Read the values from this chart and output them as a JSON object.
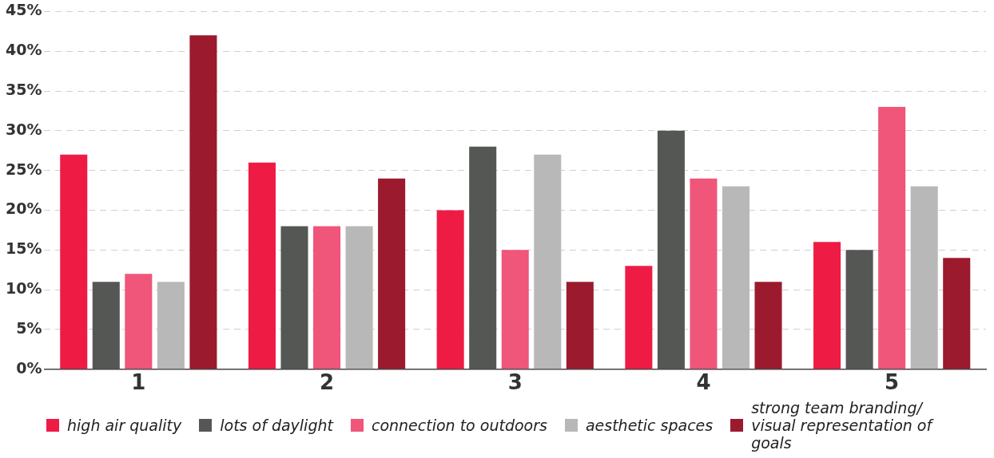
{
  "chart_data": {
    "type": "bar",
    "categories": [
      "1",
      "2",
      "3",
      "4",
      "5"
    ],
    "series": [
      {
        "name": "high air quality",
        "color": "#ee1c45",
        "values": [
          27,
          26,
          20,
          13,
          16
        ]
      },
      {
        "name": "lots of daylight",
        "color": "#555755",
        "values": [
          11,
          18,
          28,
          30,
          15
        ]
      },
      {
        "name": "connection to outdoors",
        "color": "#f0557a",
        "values": [
          12,
          18,
          15,
          24,
          33
        ]
      },
      {
        "name": "aesthetic spaces",
        "color": "#b8b8b8",
        "values": [
          11,
          18,
          27,
          23,
          23
        ]
      },
      {
        "name": "strong team branding/ visual representation of goals",
        "color": "#9b1a2e",
        "values": [
          42,
          24,
          11,
          11,
          14
        ]
      }
    ],
    "ylim": [
      0,
      45
    ],
    "yticks": [
      {
        "value": 0,
        "label": "0%"
      },
      {
        "value": 5,
        "label": "5%"
      },
      {
        "value": 10,
        "label": "10%"
      },
      {
        "value": 15,
        "label": "15%"
      },
      {
        "value": 20,
        "label": "20%"
      },
      {
        "value": 25,
        "label": "25%"
      },
      {
        "value": 30,
        "label": "30%"
      },
      {
        "value": 35,
        "label": "35%"
      },
      {
        "value": 40,
        "label": "40%"
      },
      {
        "value": 45,
        "label": "45%"
      }
    ],
    "grid": "y",
    "legend": "bottom"
  }
}
